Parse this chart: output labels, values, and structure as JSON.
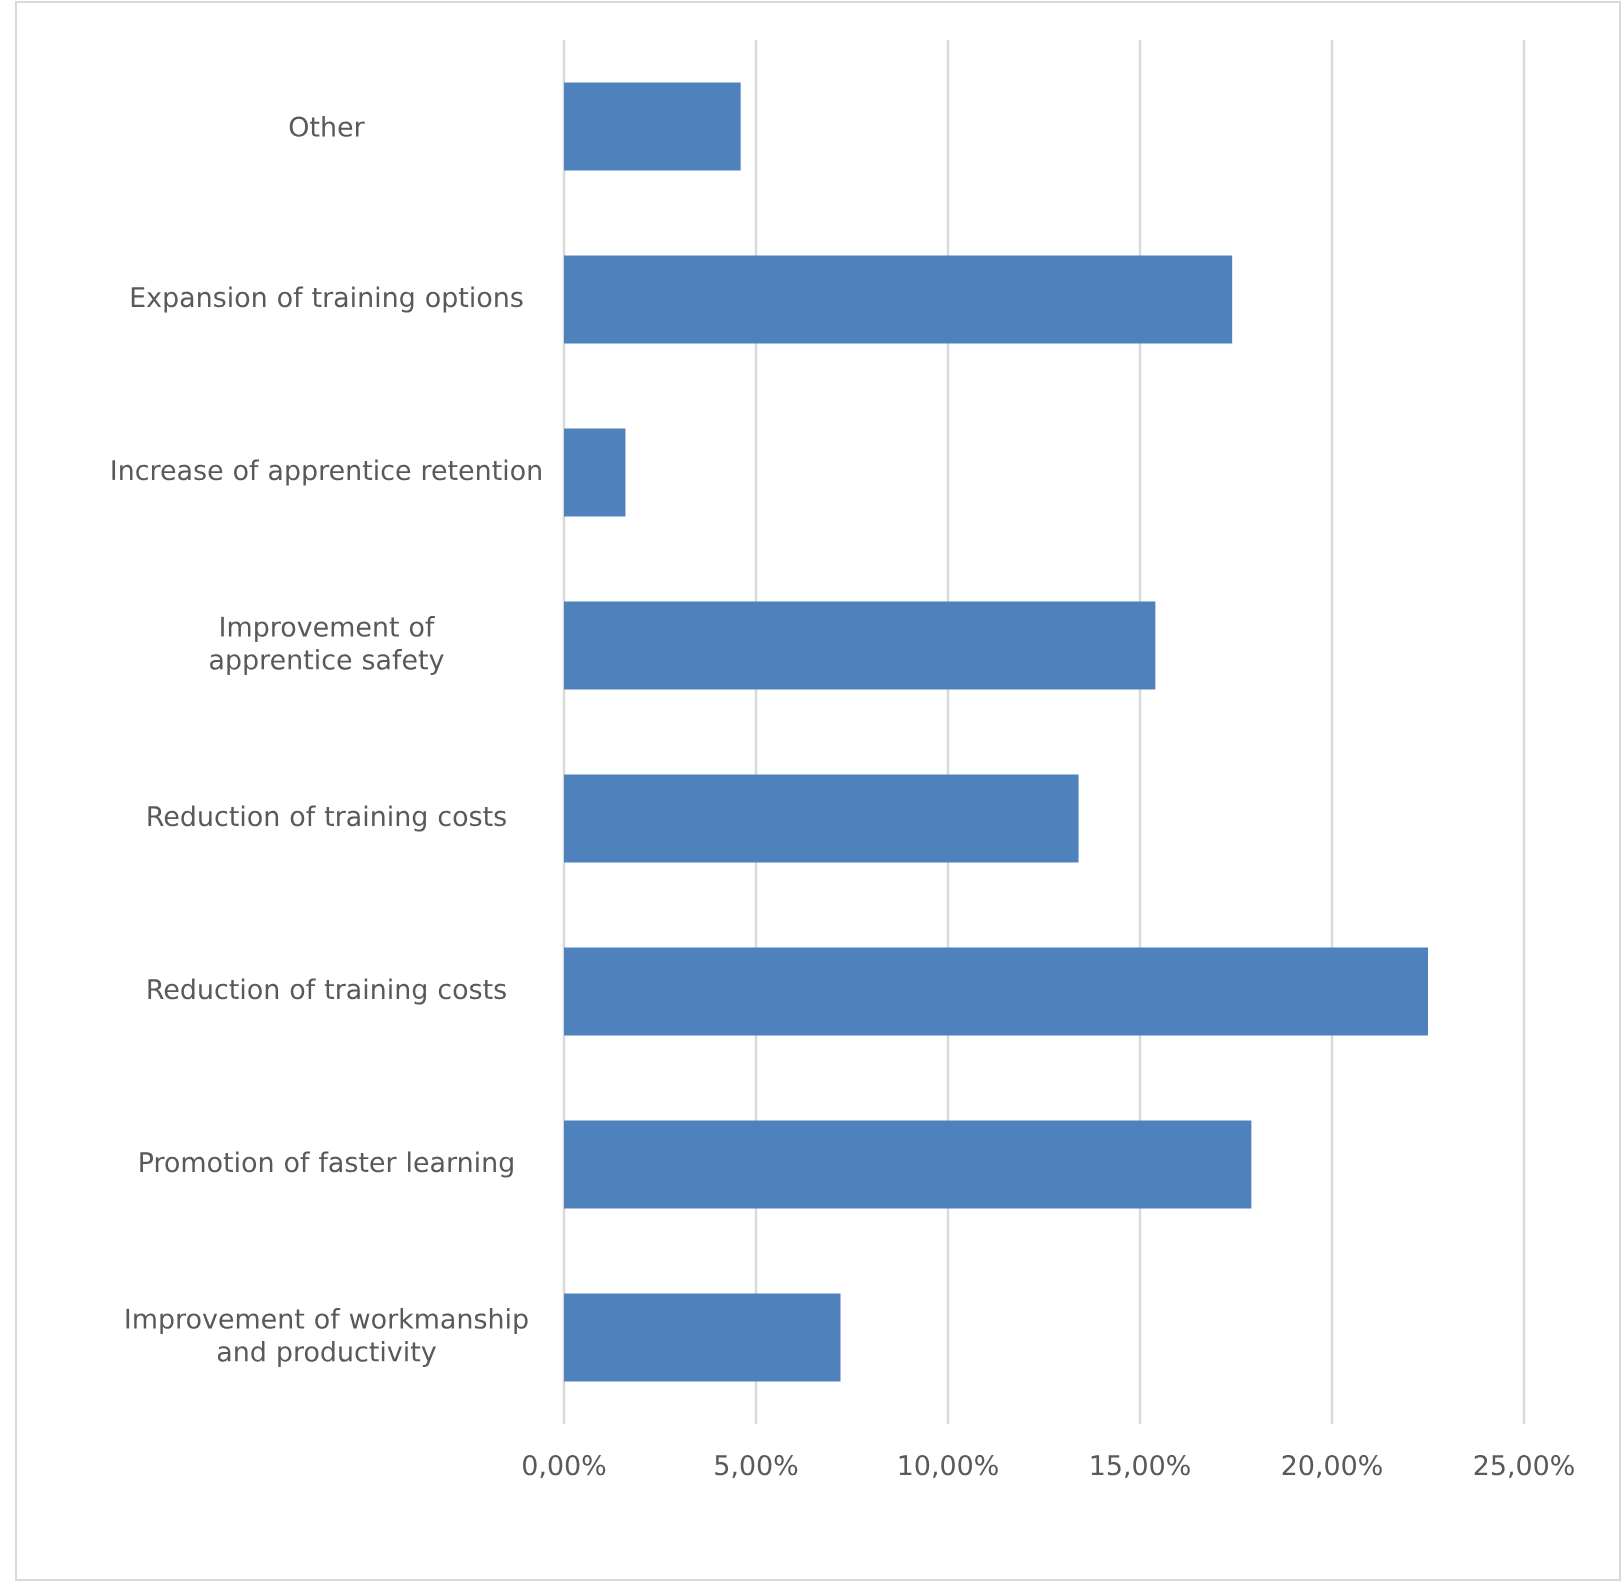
{
  "chart_data": {
    "type": "bar",
    "orientation": "horizontal",
    "categories": [
      "Other",
      "Expansion of training options",
      "Increase of apprentice retention",
      "Improvement of apprentice safety",
      "Reduction of training costs",
      "Reduction of training costs",
      "Promotion of faster learning",
      "Improvement of workmanship and productivity"
    ],
    "values": [
      4.6,
      17.4,
      1.6,
      15.4,
      13.4,
      22.5,
      17.9,
      7.2
    ],
    "color": "#4f81bd",
    "xlim": [
      0,
      25
    ],
    "xticks": [
      {
        "value": 0,
        "label": "0,00%"
      },
      {
        "value": 5,
        "label": "5,00%"
      },
      {
        "value": 10,
        "label": "10,00%"
      },
      {
        "value": 15,
        "label": "15,00%"
      },
      {
        "value": 20,
        "label": "20,00%"
      },
      {
        "value": 25,
        "label": "25,00%"
      }
    ],
    "grid": "x"
  }
}
